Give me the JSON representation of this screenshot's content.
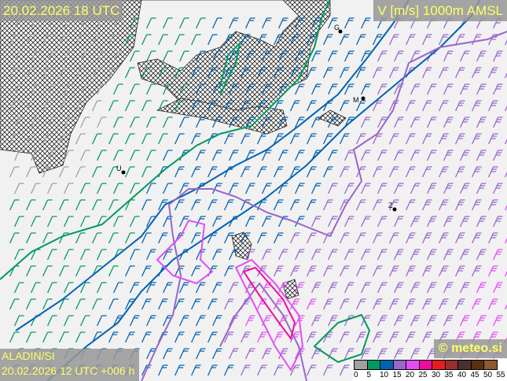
{
  "header": {
    "valid_time": "20.02.2026 18 UTC",
    "parameter": "V [m/s] 1000m AMSL"
  },
  "footer": {
    "model": "ALADIN/SI",
    "run": "20.02.2026 12 UTC +006 h",
    "copyright": "© meteo.si"
  },
  "cities": [
    {
      "label": "G"
    },
    {
      "label": "M"
    },
    {
      "label": "U"
    },
    {
      "label": "Z"
    }
  ],
  "legend": {
    "colors": [
      "#a0a0a0",
      "#009a60",
      "#0062b4",
      "#9966cc",
      "#e24ef4",
      "#f00aa0",
      "#e81c1c",
      "#983030",
      "#4a3030",
      "#5a3010",
      "#8c5a30",
      "#b89a6a"
    ],
    "ticks": [
      "0",
      "5",
      "10",
      "15",
      "20",
      "25",
      "30",
      "35",
      "40",
      "45",
      "50",
      "55"
    ]
  }
}
